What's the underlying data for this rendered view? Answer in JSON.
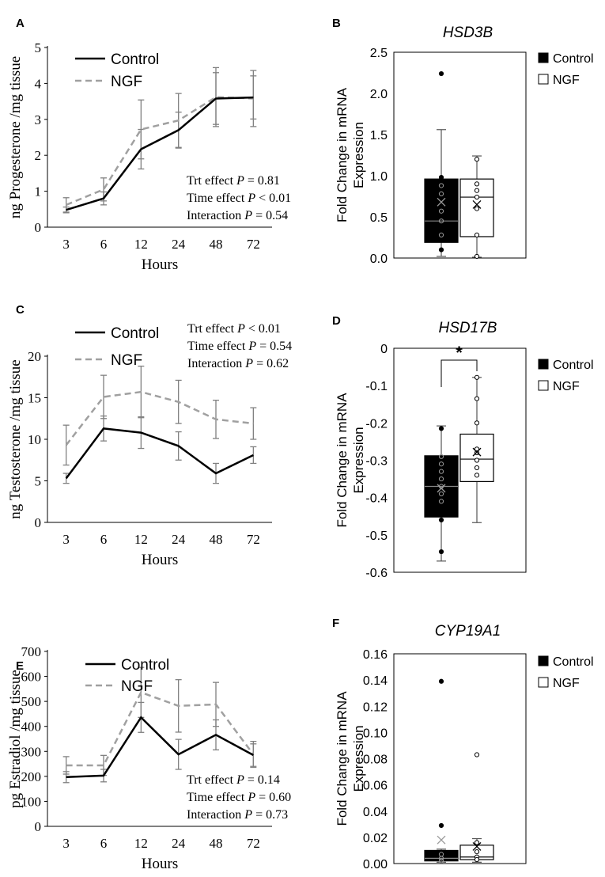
{
  "chart_data": [
    {
      "panel": "A",
      "type": "line",
      "categories": [
        "3",
        "6",
        "12",
        "24",
        "48",
        "72"
      ],
      "xlabel": "Hours",
      "ylabel": "ng Progesterone /mg tissue",
      "ylim": [
        0,
        5
      ],
      "yticks": [
        "0",
        "1",
        "2",
        "3",
        "4",
        "5"
      ],
      "series": [
        {
          "name": "Control",
          "values": [
            0.48,
            0.8,
            2.17,
            2.7,
            3.58,
            3.61
          ],
          "err": [
            0.08,
            0.18,
            0.55,
            0.5,
            0.72,
            0.6
          ]
        },
        {
          "name": "NGF",
          "values": [
            0.62,
            1.05,
            2.72,
            2.97,
            3.62,
            3.58
          ],
          "err": [
            0.2,
            0.32,
            0.82,
            0.75,
            0.82,
            0.78
          ]
        }
      ],
      "annotations": [
        {
          "label": "Trt effect ",
          "p": "P",
          "rest": " = 0.81"
        },
        {
          "label": "Time effect ",
          "p": "P",
          "rest": " < 0.01"
        },
        {
          "label": "Interaction ",
          "p": "P",
          "rest": " = 0.54"
        }
      ]
    },
    {
      "panel": "B",
      "type": "box",
      "title": "HSD3B",
      "ylabel": "Fold Change in mRNA Expression",
      "ylim": [
        0,
        2.5
      ],
      "yticks": [
        "0.0",
        "0.5",
        "1.0",
        "1.5",
        "2.0",
        "2.5"
      ],
      "legend": [
        "Control",
        "NGF"
      ],
      "boxes": [
        {
          "name": "Control",
          "q1": 0.19,
          "median": 0.45,
          "q3": 0.96,
          "mean": 0.68,
          "whisker_low": 0.02,
          "whisker_high": 1.56,
          "points": [
            2.24,
            0.98,
            0.88,
            0.78,
            0.57,
            0.45,
            0.28,
            0.1
          ]
        },
        {
          "name": "NGF",
          "q1": 0.26,
          "median": 0.74,
          "q3": 0.96,
          "mean": 0.65,
          "whisker_low": 0.01,
          "whisker_high": 1.24,
          "points": [
            1.2,
            0.9,
            0.82,
            0.74,
            0.6,
            0.28,
            0.02
          ]
        }
      ]
    },
    {
      "panel": "C",
      "type": "line",
      "categories": [
        "3",
        "6",
        "12",
        "24",
        "48",
        "72"
      ],
      "xlabel": "Hours",
      "ylabel": "ng Testosterone /mg tissue",
      "ylim": [
        0,
        20
      ],
      "yticks": [
        "0",
        "5",
        "10",
        "15",
        "20"
      ],
      "series": [
        {
          "name": "Control",
          "values": [
            5.3,
            11.3,
            10.8,
            9.2,
            5.9,
            8.1
          ],
          "err": [
            0.6,
            1.5,
            1.9,
            1.7,
            1.2,
            1.0
          ]
        },
        {
          "name": "NGF",
          "values": [
            9.3,
            15.1,
            15.7,
            14.5,
            12.4,
            11.9
          ],
          "err": [
            2.4,
            2.6,
            3.1,
            2.6,
            2.3,
            1.9
          ]
        }
      ],
      "annotations": [
        {
          "label": "Trt effect ",
          "p": "P",
          "rest": " < 0.01"
        },
        {
          "label": "Time effect ",
          "p": "P",
          "rest": " = 0.54"
        },
        {
          "label": "Interaction ",
          "p": "P",
          "rest": " = 0.62"
        }
      ]
    },
    {
      "panel": "D",
      "type": "box",
      "title": "HSD17B",
      "ylabel": "Fold Change in mRNA Expression",
      "ylim": [
        -0.6,
        0
      ],
      "yticks": [
        "-0.6",
        "-0.5",
        "-0.4",
        "-0.3",
        "-0.2",
        "-0.1",
        "0"
      ],
      "legend": [
        "Control",
        "NGF"
      ],
      "significance": "*",
      "boxes": [
        {
          "name": "Control",
          "q1": -0.452,
          "median": -0.37,
          "q3": -0.288,
          "mean": -0.375,
          "whisker_low": -0.57,
          "whisker_high": -0.208,
          "points": [
            -0.215,
            -0.29,
            -0.31,
            -0.33,
            -0.35,
            -0.37,
            -0.39,
            -0.41,
            -0.46,
            -0.545
          ]
        },
        {
          "name": "NGF",
          "q1": -0.357,
          "median": -0.297,
          "q3": -0.23,
          "mean": -0.278,
          "whisker_low": -0.467,
          "whisker_high": -0.078,
          "points": [
            -0.078,
            -0.135,
            -0.2,
            -0.27,
            -0.28,
            -0.3,
            -0.32,
            -0.34
          ]
        }
      ]
    },
    {
      "panel": "E",
      "type": "line",
      "categories": [
        "3",
        "6",
        "12",
        "24",
        "48",
        "72"
      ],
      "xlabel": "Hours",
      "ylabel": "pg Estradiol /mg tissue",
      "ylim": [
        0,
        700
      ],
      "yticks": [
        "0",
        "100",
        "200",
        "300",
        "400",
        "500",
        "600",
        "700"
      ],
      "series": [
        {
          "name": "Control",
          "values": [
            197,
            203,
            436,
            288,
            366,
            285
          ],
          "err": [
            22,
            25,
            60,
            60,
            60,
            45
          ]
        },
        {
          "name": "NGF",
          "values": [
            244,
            244,
            536,
            482,
            488,
            288
          ],
          "err": [
            35,
            40,
            100,
            105,
            88,
            52
          ]
        }
      ],
      "annotations": [
        {
          "label": "Trt effect ",
          "p": "P",
          "rest": " = 0.14"
        },
        {
          "label": "Time effect ",
          "p": "P",
          "rest": " = 0.60"
        },
        {
          "label": "Interaction ",
          "p": "P",
          "rest": " = 0.73"
        }
      ]
    },
    {
      "panel": "F",
      "type": "box",
      "title": "CYP19A1",
      "ylabel": "Fold Change in mRNA Expression",
      "ylim": [
        0,
        0.16
      ],
      "yticks": [
        "0.00",
        "0.02",
        "0.04",
        "0.06",
        "0.08",
        "0.10",
        "0.12",
        "0.14",
        "0.16"
      ],
      "legend": [
        "Control",
        "NGF"
      ],
      "boxes": [
        {
          "name": "Control",
          "q1": 0.002,
          "median": 0.004,
          "q3": 0.01,
          "mean": 0.018,
          "whisker_low": 0.001,
          "whisker_high": 0.011,
          "points": [
            0.139,
            0.029,
            0.007,
            0.004,
            0.002
          ]
        },
        {
          "name": "NGF",
          "q1": 0.003,
          "median": 0.005,
          "q3": 0.014,
          "mean": 0.013,
          "whisker_low": 0.001,
          "whisker_high": 0.019,
          "points": [
            0.083,
            0.016,
            0.009,
            0.005,
            0.003
          ]
        }
      ]
    }
  ],
  "panel_labels": [
    "A",
    "B",
    "C",
    "D",
    "E",
    "F"
  ],
  "colors": {
    "control_line": "#000000",
    "ngf_line": "#a0a0a0",
    "error_bar": "#808080"
  }
}
